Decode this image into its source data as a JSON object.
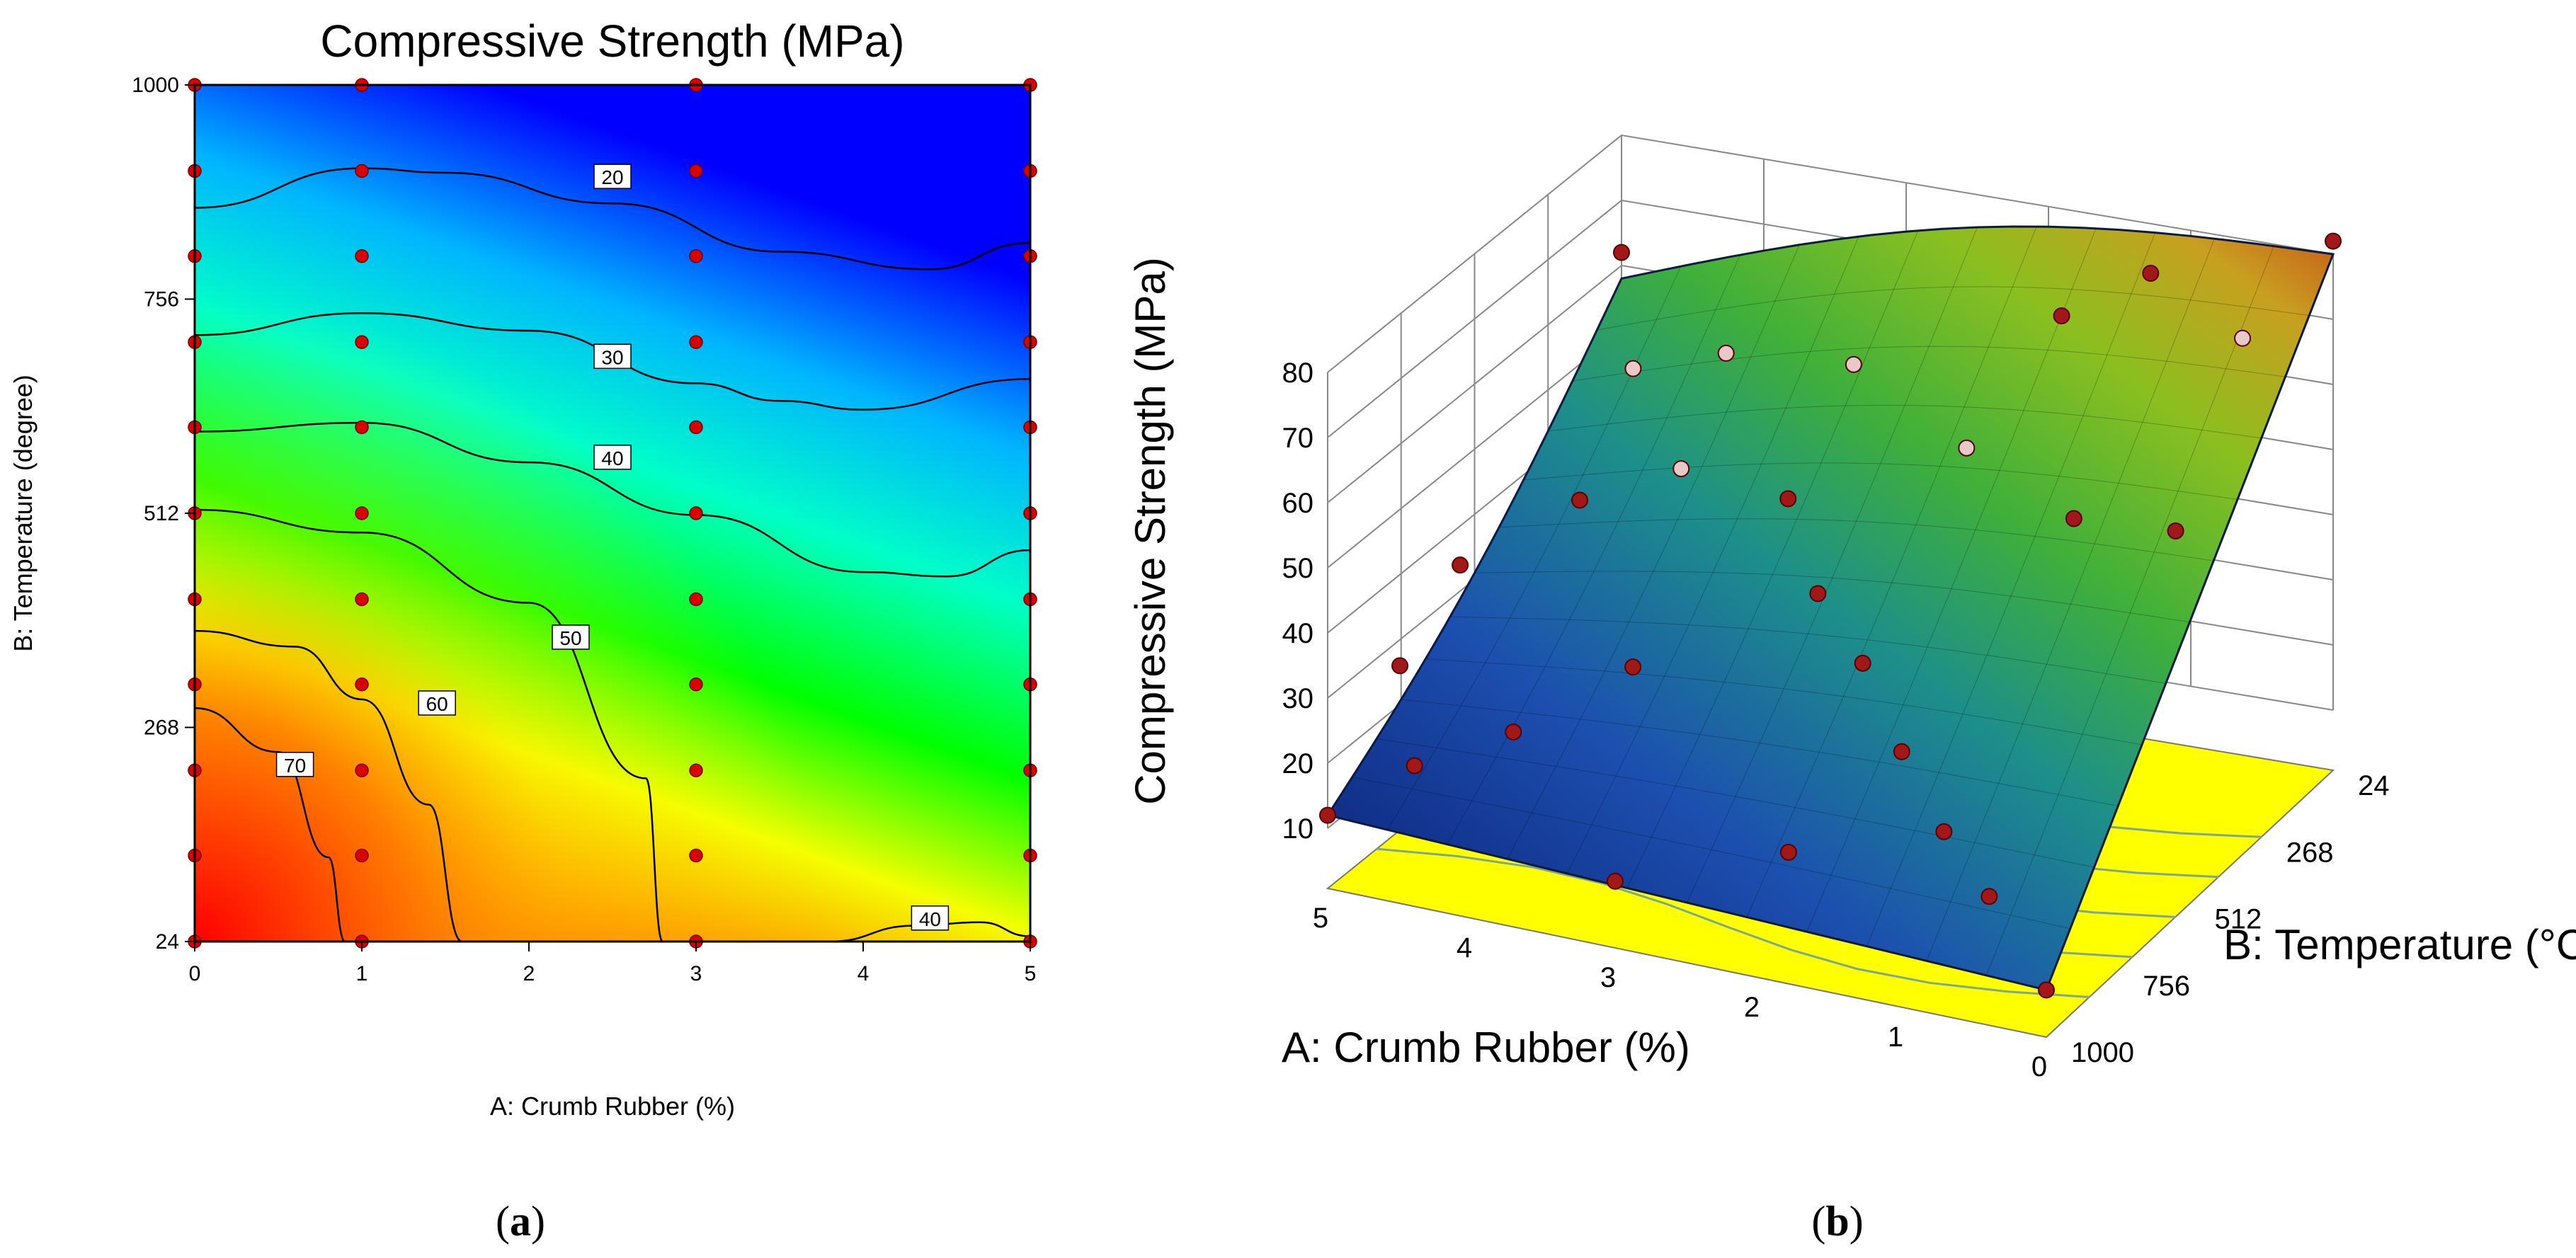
{
  "figure": {
    "panel_a_caption": {
      "open": "(",
      "letter": "a",
      "close": ")"
    },
    "panel_b_caption": {
      "open": "(",
      "letter": "b",
      "close": ")"
    }
  },
  "chart_data": [
    {
      "type": "contour",
      "panel": "a",
      "title": "Compressive Strength  (MPa)",
      "xlabel": "A: Crumb Rubber  (%)",
      "ylabel": "B: Temperature (degree)",
      "xlim": [
        0,
        5
      ],
      "ylim": [
        24,
        1000
      ],
      "x_ticks": [
        "0",
        "1",
        "2",
        "3",
        "4",
        "5"
      ],
      "y_ticks": [
        "24",
        "268",
        "512",
        "756",
        "1000"
      ],
      "colormap": [
        "#ff0000",
        "#ff8c00",
        "#ffff00",
        "#00ff00",
        "#00ffc0",
        "#00c0ff",
        "#0000ff"
      ],
      "contour_levels": [
        {
          "label": "20",
          "x": [
            0,
            1,
            1.5,
            2.5,
            3.5,
            4.4,
            5
          ],
          "y": [
            860,
            905,
            900,
            865,
            810,
            790,
            820
          ],
          "label_at": [
            2.5,
            895
          ]
        },
        {
          "label": "30",
          "x": [
            0,
            1,
            2,
            3,
            3.5,
            4,
            5
          ],
          "y": [
            715,
            740,
            720,
            660,
            640,
            630,
            665
          ],
          "label_at": [
            2.5,
            690
          ]
        },
        {
          "label": "40",
          "x": [
            0,
            1,
            2,
            3,
            4,
            4.5,
            5
          ],
          "y": [
            605,
            615,
            570,
            510,
            445,
            440,
            470
          ],
          "label_at": [
            2.5,
            575
          ]
        },
        {
          "label": "40",
          "x": [
            3.8,
            4.3,
            4.7,
            5
          ],
          "y": [
            24,
            42,
            46,
            30
          ],
          "label_at": [
            4.4,
            50
          ]
        },
        {
          "label": "50",
          "x": [
            0,
            1,
            2,
            2.7,
            2.8
          ],
          "y": [
            516,
            490,
            410,
            210,
            24
          ],
          "label_at": [
            2.25,
            370
          ]
        },
        {
          "label": "60",
          "x": [
            0,
            0.6,
            1,
            1.4,
            1.6
          ],
          "y": [
            378,
            360,
            300,
            180,
            24
          ],
          "label_at": [
            1.45,
            295
          ]
        },
        {
          "label": "70",
          "x": [
            0,
            0.5,
            0.8,
            0.9
          ],
          "y": [
            290,
            240,
            120,
            24
          ],
          "label_at": [
            0.6,
            225
          ]
        }
      ],
      "design_points": {
        "x": [
          0,
          0,
          0,
          0,
          0,
          0,
          0,
          0,
          0,
          0,
          0,
          1,
          1,
          1,
          1,
          1,
          1,
          1,
          1,
          1,
          1,
          1,
          3,
          3,
          3,
          3,
          3,
          3,
          3,
          3,
          3,
          3,
          3,
          5,
          5,
          5,
          5,
          5,
          5,
          5,
          5,
          5,
          5,
          5
        ],
        "y": [
          24,
          122,
          219,
          317,
          414,
          512,
          610,
          707,
          805,
          902,
          1000,
          24,
          122,
          219,
          317,
          414,
          512,
          610,
          707,
          805,
          902,
          1000,
          24,
          122,
          219,
          317,
          414,
          512,
          610,
          707,
          805,
          902,
          1000,
          24,
          122,
          219,
          317,
          414,
          512,
          610,
          707,
          805,
          902,
          1000
        ]
      }
    },
    {
      "type": "surface3d",
      "panel": "b",
      "zlabel": "Compressive Strength  (MPa)",
      "xlabel": "A: Crumb Rubber  (%)",
      "ylabel": "B: Temperature (°C )",
      "x_ticks": [
        "0",
        "1",
        "2",
        "3",
        "4",
        "5"
      ],
      "y_ticks": [
        "24",
        "268",
        "512",
        "756",
        "1000"
      ],
      "z_ticks": [
        "10",
        "20",
        "30",
        "40",
        "50",
        "60",
        "70",
        "80"
      ],
      "xlim": [
        0,
        5
      ],
      "ylim": [
        24,
        1000
      ],
      "zlim": [
        10,
        80
      ],
      "surface_corners": {
        "A0_T24": 80,
        "A5_T24": 58,
        "A0_T1000": 8,
        "A5_T1000": 12
      },
      "floor_color": "#ffff00",
      "surface_colors": [
        "#0a1a6e",
        "#1c4fb0",
        "#1d8f8a",
        "#3fb03a",
        "#8bbf20",
        "#c8a020",
        "#c85a1a"
      ],
      "design_points": [
        {
          "a": 5,
          "t": 24,
          "strength": 62
        },
        {
          "a": 4.8,
          "t": 80,
          "strength": 47
        },
        {
          "a": 4,
          "t": 150,
          "strength": 55
        },
        {
          "a": 3,
          "t": 200,
          "strength": 59
        },
        {
          "a": 2,
          "t": 300,
          "strength": 54
        },
        {
          "a": 1,
          "t": 420,
          "strength": 52
        },
        {
          "a": 0,
          "t": 560,
          "strength": 60
        },
        {
          "a": 0,
          "t": 24,
          "strength": 82
        },
        {
          "a": 0.5,
          "t": 90,
          "strength": 68
        },
        {
          "a": 1,
          "t": 160,
          "strength": 79
        },
        {
          "a": 1.5,
          "t": 220,
          "strength": 73
        },
        {
          "a": 3,
          "t": 420,
          "strength": 47
        },
        {
          "a": 2.5,
          "t": 560,
          "strength": 40
        },
        {
          "a": 2,
          "t": 650,
          "strength": 35
        },
        {
          "a": 1.5,
          "t": 760,
          "strength": 28
        },
        {
          "a": 1,
          "t": 860,
          "strength": 22
        },
        {
          "a": 0.5,
          "t": 950,
          "strength": 18
        },
        {
          "a": 0,
          "t": 1000,
          "strength": 8
        },
        {
          "a": 5,
          "t": 1000,
          "strength": 12
        },
        {
          "a": 5,
          "t": 760,
          "strength": 26
        },
        {
          "a": 5,
          "t": 560,
          "strength": 34
        },
        {
          "a": 4.5,
          "t": 400,
          "strength": 40
        },
        {
          "a": 4,
          "t": 300,
          "strength": 43
        },
        {
          "a": 3.5,
          "t": 700,
          "strength": 30
        },
        {
          "a": 4,
          "t": 860,
          "strength": 24
        },
        {
          "a": 4.5,
          "t": 950,
          "strength": 20
        },
        {
          "a": 2,
          "t": 900,
          "strength": 16
        },
        {
          "a": 3,
          "t": 1000,
          "strength": 11
        }
      ]
    }
  ]
}
